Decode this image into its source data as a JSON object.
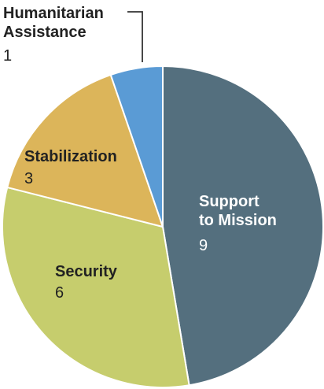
{
  "chart_data": {
    "type": "pie",
    "slices": [
      {
        "label": "Support to Mission",
        "value": 9,
        "color": "#546f7e",
        "text_color": "#ffffff"
      },
      {
        "label": "Security",
        "value": 6,
        "color": "#c6cd6d",
        "text_color": "#222222"
      },
      {
        "label": "Stabilization",
        "value": 3,
        "color": "#dcb55a",
        "text_color": "#222222"
      },
      {
        "label": "Humanitarian Assistance",
        "value": 1,
        "color": "#5a9bd5",
        "text_color": "#222222"
      }
    ],
    "start_angle_deg": 0,
    "direction": "clockwise",
    "slice_border_color": "#ffffff",
    "legend": "none",
    "callout_line_color": "#333333"
  }
}
